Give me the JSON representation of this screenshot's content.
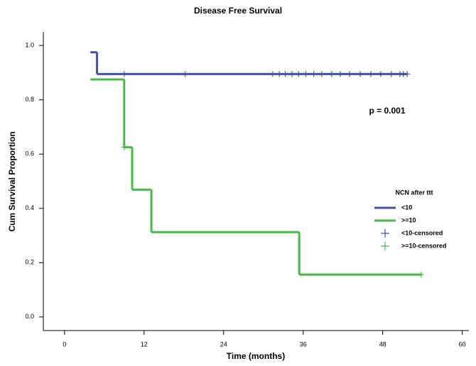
{
  "chart_data": {
    "type": "survival",
    "title": "Disease Free Survival",
    "x_label": "Time (months)",
    "y_label": "Cum Survival Proportion",
    "annotation": "p = 0.001",
    "legend_title": "NCN after ttt",
    "xlim": [
      -3.2,
      61
    ],
    "ylim": [
      -0.05,
      1.05
    ],
    "xticks": [
      0,
      12,
      24,
      36,
      48,
      60
    ],
    "yticks": [
      {
        "value": 0,
        "label": "0.0"
      },
      0.2,
      0.4,
      0.6,
      0.8,
      {
        "value": 1,
        "label": "1.0"
      }
    ],
    "series": [
      {
        "name": "<10",
        "color": "#3f51a8",
        "style": "step",
        "x": [
          3.9,
          4.9,
          51.7
        ],
        "values": [
          0.975,
          0.895,
          0.895
        ]
      },
      {
        "name": ">=10",
        "color": "#44bb44",
        "style": "step",
        "x": [
          3.9,
          9.0,
          10.2,
          13.1,
          35.4,
          53.8
        ],
        "values": [
          0.875,
          0.625,
          0.469,
          0.3125,
          0.156,
          0.156
        ]
      },
      {
        "name": "<10-censored",
        "color": "#3f51a8",
        "style": "cross",
        "x": [
          9.0,
          18.2,
          31.4,
          32.4,
          33.3,
          34.3,
          35.3,
          36.4,
          37.6,
          38.8,
          40.3,
          41.6,
          43.0,
          44.6,
          46.2,
          47.7,
          49.3,
          50.6,
          51.1,
          51.7
        ],
        "values": [
          0.895,
          0.895,
          0.895,
          0.895,
          0.895,
          0.895,
          0.895,
          0.895,
          0.895,
          0.895,
          0.895,
          0.895,
          0.895,
          0.895,
          0.895,
          0.895,
          0.895,
          0.895,
          0.895,
          0.895
        ]
      },
      {
        "name": ">=10-censored",
        "color": "#44bb44",
        "style": "cross",
        "x": [
          9.0,
          53.8
        ],
        "values": [
          0.625,
          0.156
        ]
      }
    ]
  }
}
